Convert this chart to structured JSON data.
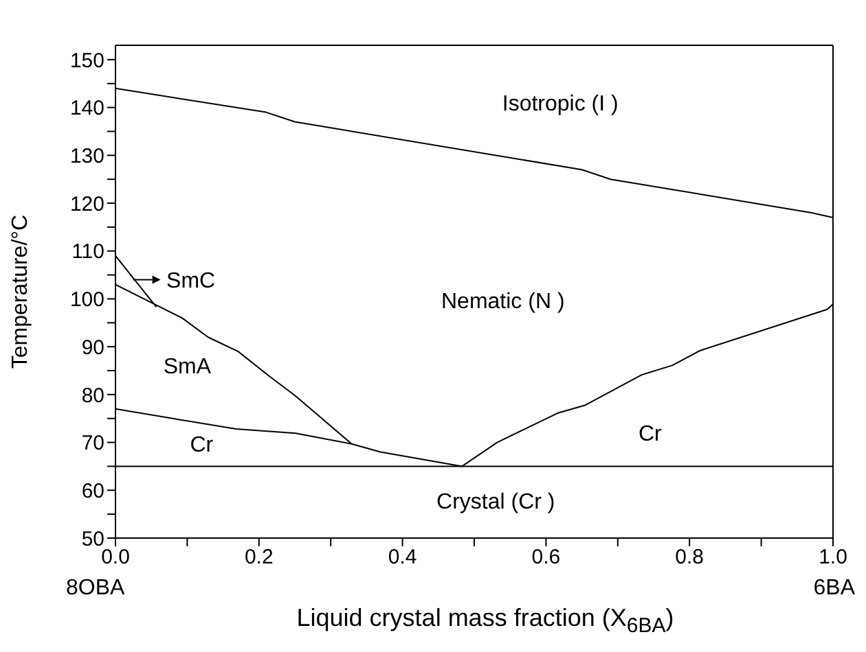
{
  "chart_data": {
    "type": "line",
    "xlabel": "Liquid crystal mass fraction (X$_{6BA}$)",
    "ylabel": "Temperature/°C",
    "xlim": [
      0,
      1
    ],
    "xticks": [
      {
        "value": 0,
        "label": "0.0"
      },
      {
        "value": 0.1,
        "label": null
      },
      0.2,
      {
        "value": 0.3,
        "label": null
      },
      0.4,
      {
        "value": 0.5,
        "label": null
      },
      0.6,
      {
        "value": 0.7,
        "label": null
      },
      0.8,
      {
        "value": 0.9,
        "label": null
      },
      {
        "value": 1,
        "label": "1.0"
      }
    ],
    "ylim": [
      50,
      153
    ],
    "yticks": [
      50,
      {
        "value": 55,
        "label": null
      },
      60,
      {
        "value": 65,
        "label": null
      },
      70,
      {
        "value": 75,
        "label": null
      },
      80,
      {
        "value": 85,
        "label": null
      },
      90,
      {
        "value": 95,
        "label": null
      },
      100,
      {
        "value": 105,
        "label": null
      },
      110,
      {
        "value": 115,
        "label": null
      },
      120,
      {
        "value": 125,
        "label": null
      },
      130,
      {
        "value": 135,
        "label": null
      },
      140,
      {
        "value": 145,
        "label": null
      },
      150
    ],
    "grid": false,
    "marker": "none",
    "line_style": "solid",
    "series": [
      {
        "color": "#000000",
        "x": [
          0,
          0.21,
          0.25,
          0.65,
          0.69,
          0.97,
          1
        ],
        "values": [
          144,
          139,
          137,
          127,
          125,
          118,
          117
        ]
      },
      {
        "color": "#000000",
        "x": [
          0,
          0.057
        ],
        "values": [
          109,
          98.3
        ]
      },
      {
        "color": "#000000",
        "x": [
          0,
          0.093,
          0.129,
          0.171,
          0.213,
          0.251,
          0.329
        ],
        "values": [
          103,
          96,
          92,
          89,
          84,
          79.7,
          69.7
        ]
      },
      {
        "color": "#000000",
        "x": [
          0,
          0.168,
          0.251,
          0.329,
          0.369,
          0.483
        ],
        "values": [
          77,
          72.8,
          71.9,
          69.7,
          68,
          65
        ]
      },
      {
        "color": "#000000",
        "x": [
          0.483,
          0.532,
          0.616,
          0.655,
          0.733,
          0.776,
          0.815,
          0.992,
          1
        ],
        "values": [
          65,
          70,
          76.1,
          77.8,
          84.1,
          86.1,
          89.2,
          97.8,
          98.9
        ]
      },
      {
        "color": "#000000",
        "x": [
          0,
          1
        ],
        "values": [
          65,
          65
        ]
      }
    ],
    "annotations": [
      "Isotropic (I )",
      "Nematic (N )",
      "SmC",
      "SmA",
      "Cr",
      "Cr",
      "Crystal (Cr )",
      "8OBA",
      "6BA"
    ]
  }
}
